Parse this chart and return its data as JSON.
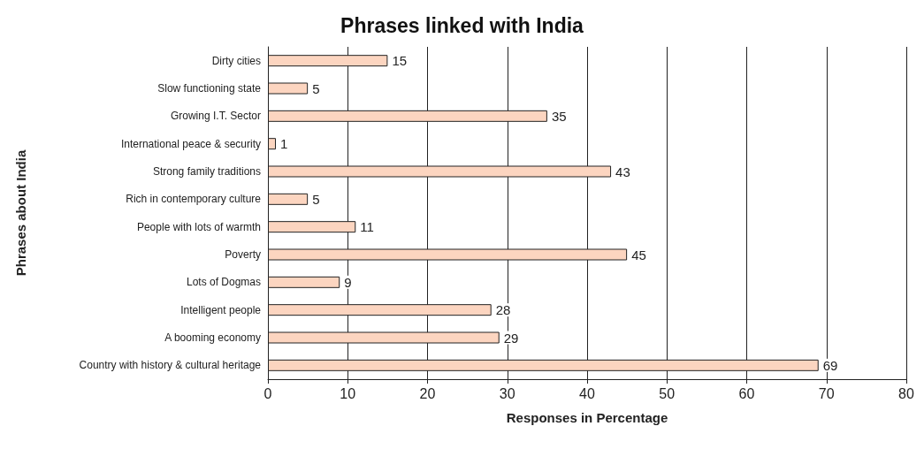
{
  "chart_data": {
    "type": "bar",
    "orientation": "horizontal",
    "title": "Phrases linked with India",
    "xlabel": "Responses in Percentage",
    "ylabel": "Phrases about India",
    "categories": [
      "Dirty cities",
      "Slow functioning state",
      "Growing I.T. Sector",
      "International peace & security",
      "Strong family traditions",
      "Rich in contemporary culture",
      "People with lots of warmth",
      "Poverty",
      "Lots of Dogmas",
      "Intelligent people",
      "A booming economy",
      "Country with history & cultural heritage"
    ],
    "values": [
      15,
      5,
      35,
      1,
      43,
      5,
      11,
      45,
      9,
      28,
      29,
      69
    ],
    "color": "#fcd5c0",
    "xlim": [
      0,
      80
    ],
    "xticks": [
      0,
      10,
      20,
      30,
      40,
      50,
      60,
      70,
      80
    ],
    "grid": "x",
    "data_labels": true
  }
}
